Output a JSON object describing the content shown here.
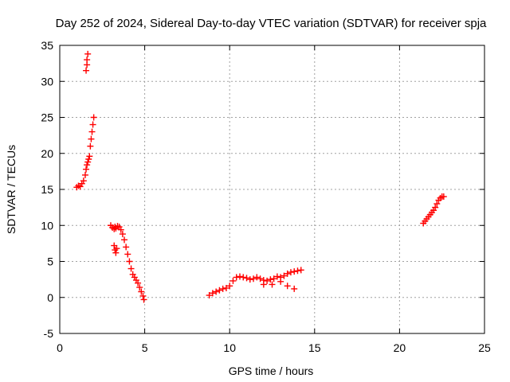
{
  "chart_data": {
    "type": "scatter",
    "title": "Day 252 of 2024, Sidereal Day-to-day VTEC variation (SDTVAR) for receiver spja",
    "xlabel": "GPS time / hours",
    "ylabel": "SDTVAR / TECUs",
    "xlim": [
      0,
      25
    ],
    "ylim": [
      -5,
      35
    ],
    "xticks": [
      0,
      5,
      10,
      15,
      20,
      25
    ],
    "yticks": [
      -5,
      0,
      5,
      10,
      15,
      20,
      25,
      30,
      35
    ],
    "xtick_labels": [
      "0",
      "5",
      "10",
      "15",
      "20",
      "25"
    ],
    "ytick_labels": [
      "-5",
      "0",
      "5",
      "10",
      "15",
      "20",
      "25",
      "30",
      "35"
    ],
    "grid": true,
    "marker": "+",
    "color": "#ff0000",
    "series": [
      {
        "name": "SDTVAR",
        "x": [
          1.0,
          1.1,
          1.2,
          1.3,
          1.4,
          1.5,
          1.55,
          1.6,
          1.65,
          1.7,
          1.75,
          1.8,
          1.85,
          1.9,
          1.95,
          2.0,
          1.55,
          1.6,
          1.6,
          1.65,
          3.0,
          3.1,
          3.2,
          3.25,
          3.3,
          3.4,
          3.5,
          3.6,
          3.7,
          3.8,
          3.9,
          4.0,
          4.1,
          4.2,
          4.3,
          4.4,
          4.5,
          4.6,
          4.7,
          4.8,
          4.9,
          4.95,
          3.2,
          3.25,
          3.3,
          3.35,
          8.8,
          9.0,
          9.2,
          9.4,
          9.6,
          9.8,
          10.0,
          10.2,
          10.4,
          10.6,
          10.8,
          11.0,
          11.2,
          11.4,
          11.6,
          11.8,
          12.0,
          12.2,
          12.4,
          12.6,
          12.8,
          13.0,
          13.2,
          13.4,
          13.6,
          13.8,
          14.0,
          14.2,
          12.0,
          12.5,
          13.0,
          13.4,
          13.8,
          21.4,
          21.5,
          21.6,
          21.7,
          21.8,
          21.9,
          22.0,
          22.1,
          22.2,
          22.3,
          22.4,
          22.5,
          22.6
        ],
        "y": [
          15.3,
          15.5,
          15.4,
          15.8,
          16.2,
          17.0,
          17.8,
          18.4,
          18.8,
          19.2,
          19.6,
          21.0,
          22.0,
          23.0,
          24.0,
          25.0,
          31.5,
          32.3,
          33.0,
          33.8,
          10.0,
          9.7,
          9.5,
          9.8,
          9.6,
          9.9,
          9.8,
          9.4,
          8.8,
          8.0,
          7.0,
          6.0,
          5.0,
          4.0,
          3.2,
          2.8,
          2.4,
          2.0,
          1.4,
          0.8,
          0.2,
          -0.3,
          7.2,
          6.6,
          6.2,
          6.8,
          0.3,
          0.6,
          0.8,
          1.0,
          1.2,
          1.3,
          1.6,
          2.3,
          2.8,
          2.9,
          2.8,
          2.7,
          2.5,
          2.6,
          2.8,
          2.6,
          2.4,
          2.3,
          2.5,
          2.6,
          2.9,
          2.8,
          3.0,
          3.3,
          3.5,
          3.6,
          3.7,
          3.8,
          1.8,
          1.8,
          2.2,
          1.6,
          1.2,
          10.3,
          10.6,
          10.9,
          11.2,
          11.5,
          11.8,
          12.1,
          12.5,
          13.0,
          13.5,
          13.8,
          14.0,
          14.0
        ]
      }
    ]
  }
}
